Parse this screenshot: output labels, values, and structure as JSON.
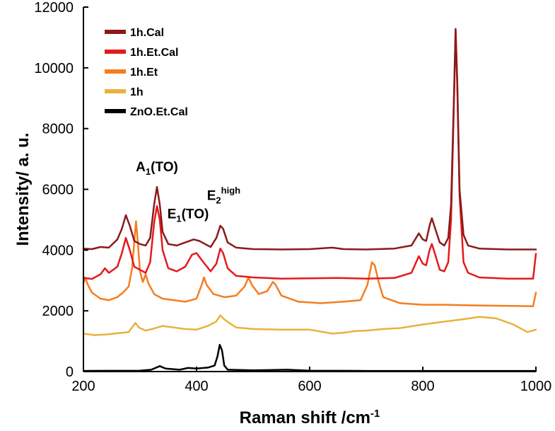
{
  "chart_data": {
    "type": "line",
    "title": "",
    "xlabel": "Raman shift /cm",
    "xlabel_sup": "-1",
    "ylabel": "Intensity/ a. u.",
    "xlim": [
      200,
      1000
    ],
    "ylim": [
      0,
      12000
    ],
    "xticks": [
      "200",
      "400",
      "600",
      "800",
      "1000"
    ],
    "yticks": [
      "0",
      "2000",
      "4000",
      "6000",
      "8000",
      "10000",
      "12000"
    ],
    "grid": false,
    "legend_position": "top-left",
    "annotations": [
      {
        "base": "A",
        "sub": "1",
        "rest": "(TO)",
        "x": 330,
        "y": 6600
      },
      {
        "base": "E",
        "sub": "1",
        "rest": "(TO)",
        "x": 385,
        "y": 5050
      },
      {
        "base": "E",
        "sub": "2",
        "sup": "high",
        "x": 448,
        "y": 5650
      }
    ],
    "series": [
      {
        "name": "1h.Cal",
        "color": "#8b1a1a",
        "baseline": 4020,
        "points": [
          [
            200,
            4050
          ],
          [
            215,
            4030
          ],
          [
            230,
            4100
          ],
          [
            245,
            4080
          ],
          [
            260,
            4350
          ],
          [
            268,
            4700
          ],
          [
            275,
            5150
          ],
          [
            282,
            4800
          ],
          [
            290,
            4300
          ],
          [
            300,
            4200
          ],
          [
            310,
            4150
          ],
          [
            318,
            4400
          ],
          [
            325,
            5500
          ],
          [
            330,
            6080
          ],
          [
            335,
            5500
          ],
          [
            340,
            4600
          ],
          [
            350,
            4200
          ],
          [
            365,
            4150
          ],
          [
            380,
            4250
          ],
          [
            395,
            4350
          ],
          [
            405,
            4300
          ],
          [
            415,
            4200
          ],
          [
            425,
            4100
          ],
          [
            435,
            4400
          ],
          [
            442,
            4800
          ],
          [
            447,
            4700
          ],
          [
            455,
            4250
          ],
          [
            470,
            4080
          ],
          [
            500,
            4030
          ],
          [
            550,
            4020
          ],
          [
            600,
            4030
          ],
          [
            640,
            4080
          ],
          [
            660,
            4030
          ],
          [
            700,
            4020
          ],
          [
            750,
            4050
          ],
          [
            780,
            4150
          ],
          [
            793,
            4550
          ],
          [
            800,
            4350
          ],
          [
            806,
            4300
          ],
          [
            812,
            4800
          ],
          [
            816,
            5050
          ],
          [
            822,
            4700
          ],
          [
            830,
            4250
          ],
          [
            838,
            4150
          ],
          [
            845,
            4400
          ],
          [
            850,
            5500
          ],
          [
            855,
            9000
          ],
          [
            858,
            11280
          ],
          [
            861,
            9500
          ],
          [
            865,
            6000
          ],
          [
            872,
            4500
          ],
          [
            880,
            4150
          ],
          [
            900,
            4050
          ],
          [
            950,
            4020
          ],
          [
            1000,
            4020
          ]
        ]
      },
      {
        "name": "1h.Et.Cal",
        "color": "#e31a1c",
        "baseline": 3050,
        "points": [
          [
            200,
            3080
          ],
          [
            215,
            3050
          ],
          [
            230,
            3200
          ],
          [
            238,
            3400
          ],
          [
            245,
            3250
          ],
          [
            260,
            3450
          ],
          [
            268,
            3900
          ],
          [
            275,
            4400
          ],
          [
            282,
            4000
          ],
          [
            290,
            3450
          ],
          [
            300,
            3350
          ],
          [
            310,
            3250
          ],
          [
            318,
            3600
          ],
          [
            325,
            4900
          ],
          [
            330,
            5450
          ],
          [
            335,
            5000
          ],
          [
            340,
            4000
          ],
          [
            350,
            3400
          ],
          [
            365,
            3300
          ],
          [
            380,
            3450
          ],
          [
            392,
            3850
          ],
          [
            400,
            3900
          ],
          [
            410,
            3650
          ],
          [
            425,
            3300
          ],
          [
            435,
            3550
          ],
          [
            442,
            4050
          ],
          [
            447,
            3900
          ],
          [
            455,
            3400
          ],
          [
            470,
            3150
          ],
          [
            500,
            3100
          ],
          [
            550,
            3060
          ],
          [
            600,
            3070
          ],
          [
            650,
            3080
          ],
          [
            700,
            3060
          ],
          [
            750,
            3080
          ],
          [
            780,
            3250
          ],
          [
            793,
            3800
          ],
          [
            800,
            3550
          ],
          [
            806,
            3500
          ],
          [
            812,
            4000
          ],
          [
            816,
            4200
          ],
          [
            822,
            3850
          ],
          [
            830,
            3350
          ],
          [
            838,
            3300
          ],
          [
            845,
            3600
          ],
          [
            850,
            5000
          ],
          [
            855,
            8800
          ],
          [
            858,
            11220
          ],
          [
            861,
            9400
          ],
          [
            865,
            5800
          ],
          [
            872,
            3600
          ],
          [
            880,
            3250
          ],
          [
            900,
            3100
          ],
          [
            950,
            3060
          ],
          [
            995,
            3060
          ],
          [
            1000,
            3880
          ]
        ]
      },
      {
        "name": "1h.Et",
        "color": "#f57d1f",
        "baseline": 2150,
        "points": [
          [
            200,
            2900
          ],
          [
            203,
            3100
          ],
          [
            208,
            2850
          ],
          [
            215,
            2600
          ],
          [
            230,
            2400
          ],
          [
            245,
            2350
          ],
          [
            260,
            2450
          ],
          [
            270,
            2600
          ],
          [
            280,
            2800
          ],
          [
            286,
            3400
          ],
          [
            290,
            4300
          ],
          [
            293,
            4950
          ],
          [
            296,
            4300
          ],
          [
            300,
            3300
          ],
          [
            305,
            2950
          ],
          [
            310,
            3200
          ],
          [
            315,
            2900
          ],
          [
            325,
            2550
          ],
          [
            340,
            2400
          ],
          [
            360,
            2350
          ],
          [
            380,
            2300
          ],
          [
            400,
            2400
          ],
          [
            410,
            2900
          ],
          [
            413,
            3100
          ],
          [
            418,
            2850
          ],
          [
            430,
            2550
          ],
          [
            450,
            2450
          ],
          [
            470,
            2500
          ],
          [
            485,
            2800
          ],
          [
            492,
            3100
          ],
          [
            498,
            2850
          ],
          [
            510,
            2550
          ],
          [
            525,
            2650
          ],
          [
            535,
            2950
          ],
          [
            540,
            2850
          ],
          [
            550,
            2500
          ],
          [
            580,
            2300
          ],
          [
            620,
            2250
          ],
          [
            660,
            2300
          ],
          [
            690,
            2350
          ],
          [
            702,
            2850
          ],
          [
            710,
            3600
          ],
          [
            715,
            3500
          ],
          [
            722,
            2950
          ],
          [
            730,
            2450
          ],
          [
            760,
            2250
          ],
          [
            800,
            2200
          ],
          [
            840,
            2200
          ],
          [
            880,
            2180
          ],
          [
            920,
            2170
          ],
          [
            960,
            2160
          ],
          [
            995,
            2150
          ],
          [
            1000,
            2600
          ]
        ]
      },
      {
        "name": "1h",
        "color": "#e8b23c",
        "baseline": 1300,
        "points": [
          [
            200,
            1250
          ],
          [
            220,
            1200
          ],
          [
            240,
            1220
          ],
          [
            260,
            1260
          ],
          [
            280,
            1300
          ],
          [
            292,
            1600
          ],
          [
            298,
            1450
          ],
          [
            310,
            1350
          ],
          [
            325,
            1420
          ],
          [
            340,
            1500
          ],
          [
            360,
            1450
          ],
          [
            380,
            1400
          ],
          [
            400,
            1380
          ],
          [
            420,
            1500
          ],
          [
            435,
            1650
          ],
          [
            442,
            1850
          ],
          [
            450,
            1700
          ],
          [
            470,
            1450
          ],
          [
            500,
            1400
          ],
          [
            550,
            1380
          ],
          [
            600,
            1380
          ],
          [
            640,
            1250
          ],
          [
            660,
            1280
          ],
          [
            680,
            1330
          ],
          [
            700,
            1350
          ],
          [
            730,
            1400
          ],
          [
            760,
            1430
          ],
          [
            800,
            1550
          ],
          [
            840,
            1650
          ],
          [
            870,
            1720
          ],
          [
            900,
            1800
          ],
          [
            930,
            1750
          ],
          [
            960,
            1550
          ],
          [
            985,
            1300
          ],
          [
            1000,
            1380
          ]
        ]
      },
      {
        "name": "ZnO.Et.Cal",
        "color": "#000000",
        "baseline": 20,
        "points": [
          [
            200,
            20
          ],
          [
            300,
            30
          ],
          [
            320,
            60
          ],
          [
            335,
            180
          ],
          [
            345,
            100
          ],
          [
            370,
            60
          ],
          [
            385,
            120
          ],
          [
            400,
            100
          ],
          [
            420,
            130
          ],
          [
            432,
            200
          ],
          [
            437,
            500
          ],
          [
            441,
            880
          ],
          [
            445,
            700
          ],
          [
            449,
            200
          ],
          [
            455,
            60
          ],
          [
            500,
            40
          ],
          [
            560,
            60
          ],
          [
            600,
            30
          ],
          [
            700,
            20
          ],
          [
            800,
            20
          ],
          [
            900,
            20
          ],
          [
            1000,
            20
          ]
        ]
      }
    ]
  }
}
